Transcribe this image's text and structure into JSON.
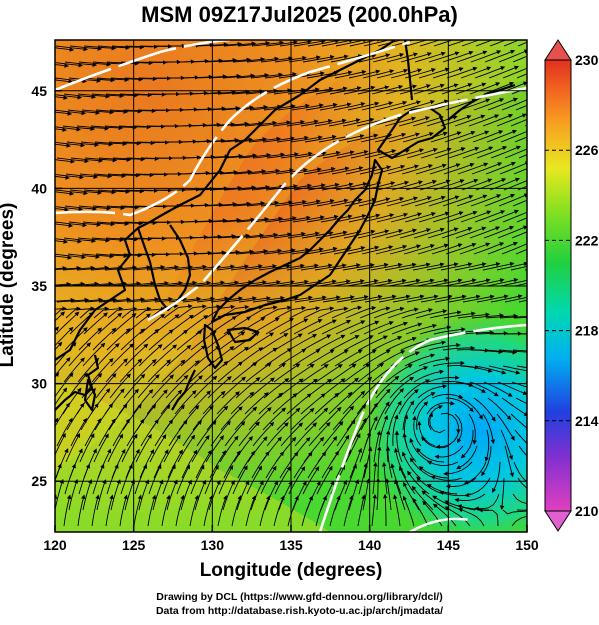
{
  "title": "MSM 09Z17Jul2025 (200.0hPa)",
  "x_axis": {
    "label": "Longitude (degrees)",
    "ticks": [
      "120",
      "125",
      "130",
      "135",
      "140",
      "145",
      "150"
    ],
    "range": [
      120,
      150
    ]
  },
  "y_axis": {
    "label": "Latitude  (degrees)",
    "ticks": [
      "25",
      "30",
      "35",
      "40",
      "45"
    ],
    "range": [
      22.4,
      47.6
    ]
  },
  "colorbar": {
    "ticks": [
      "230",
      "226",
      "222",
      "218",
      "214",
      "210"
    ],
    "range": [
      210,
      230
    ],
    "palette": [
      "#e040c0",
      "#8030d0",
      "#2040e0",
      "#00b0f0",
      "#00d8b0",
      "#20d040",
      "#80e020",
      "#e8e820",
      "#f8a020",
      "#f06020",
      "#e03020"
    ],
    "over_color": "#e85050",
    "under_color": "#e060d0"
  },
  "field": {
    "variable": "temperature",
    "contour_color": "#ffffff"
  },
  "credit": {
    "line1": "Drawing by DCL (https://www.gfd-dennou.org/library/dcl/)",
    "line2": "Data from http://database.rish.kyoto-u.ac.jp/arch/jmadata/"
  }
}
